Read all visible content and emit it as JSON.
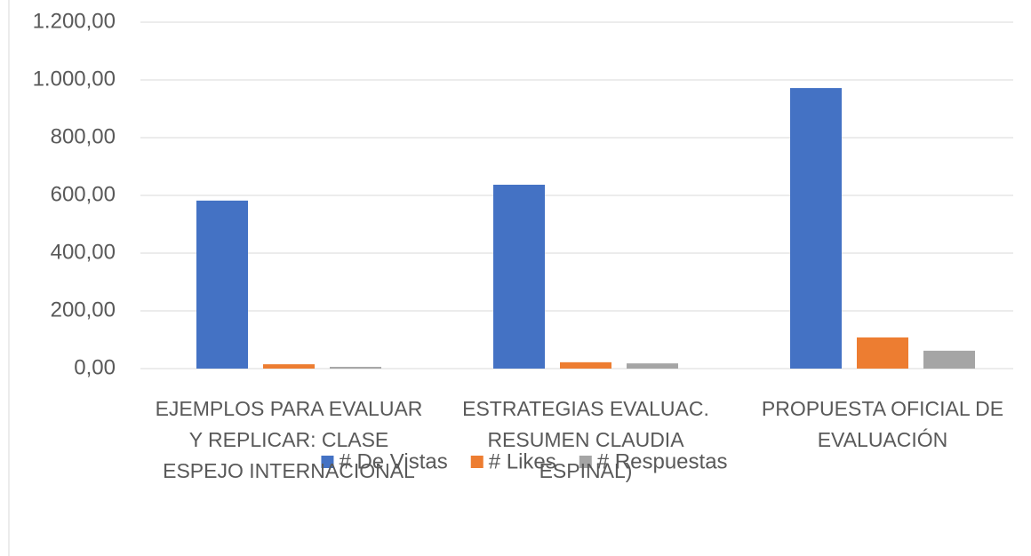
{
  "chart_data": {
    "type": "bar",
    "categories": [
      "EJEMPLOS PARA EVALUAR Y REPLICAR: CLASE ESPEJO INTERNACIONAL",
      "ESTRATEGIAS EVALUAC. RESUMEN CLAUDIA ESPINAL)",
      "PROPUESTA OFICIAL DE EVALUACIÓN"
    ],
    "series": [
      {
        "name": "# De Vistas",
        "color": "#4472c4",
        "values": [
          582,
          637,
          972
        ]
      },
      {
        "name": "# Likes",
        "color": "#ed7d31",
        "values": [
          15,
          22,
          108
        ]
      },
      {
        "name": "# Respuestas",
        "color": "#a5a5a5",
        "values": [
          6,
          18,
          62
        ]
      }
    ],
    "ylim": [
      0,
      1200
    ],
    "yticks": [
      {
        "value": 0,
        "label": "0,00"
      },
      {
        "value": 200,
        "label": "200,00"
      },
      {
        "value": 400,
        "label": "400,00"
      },
      {
        "value": 600,
        "label": "600,00"
      },
      {
        "value": 800,
        "label": "800,00"
      },
      {
        "value": 1000,
        "label": "1.000,00"
      },
      {
        "value": 1200,
        "label": "1.200,00"
      }
    ],
    "grid": true,
    "legend": "bottom"
  }
}
